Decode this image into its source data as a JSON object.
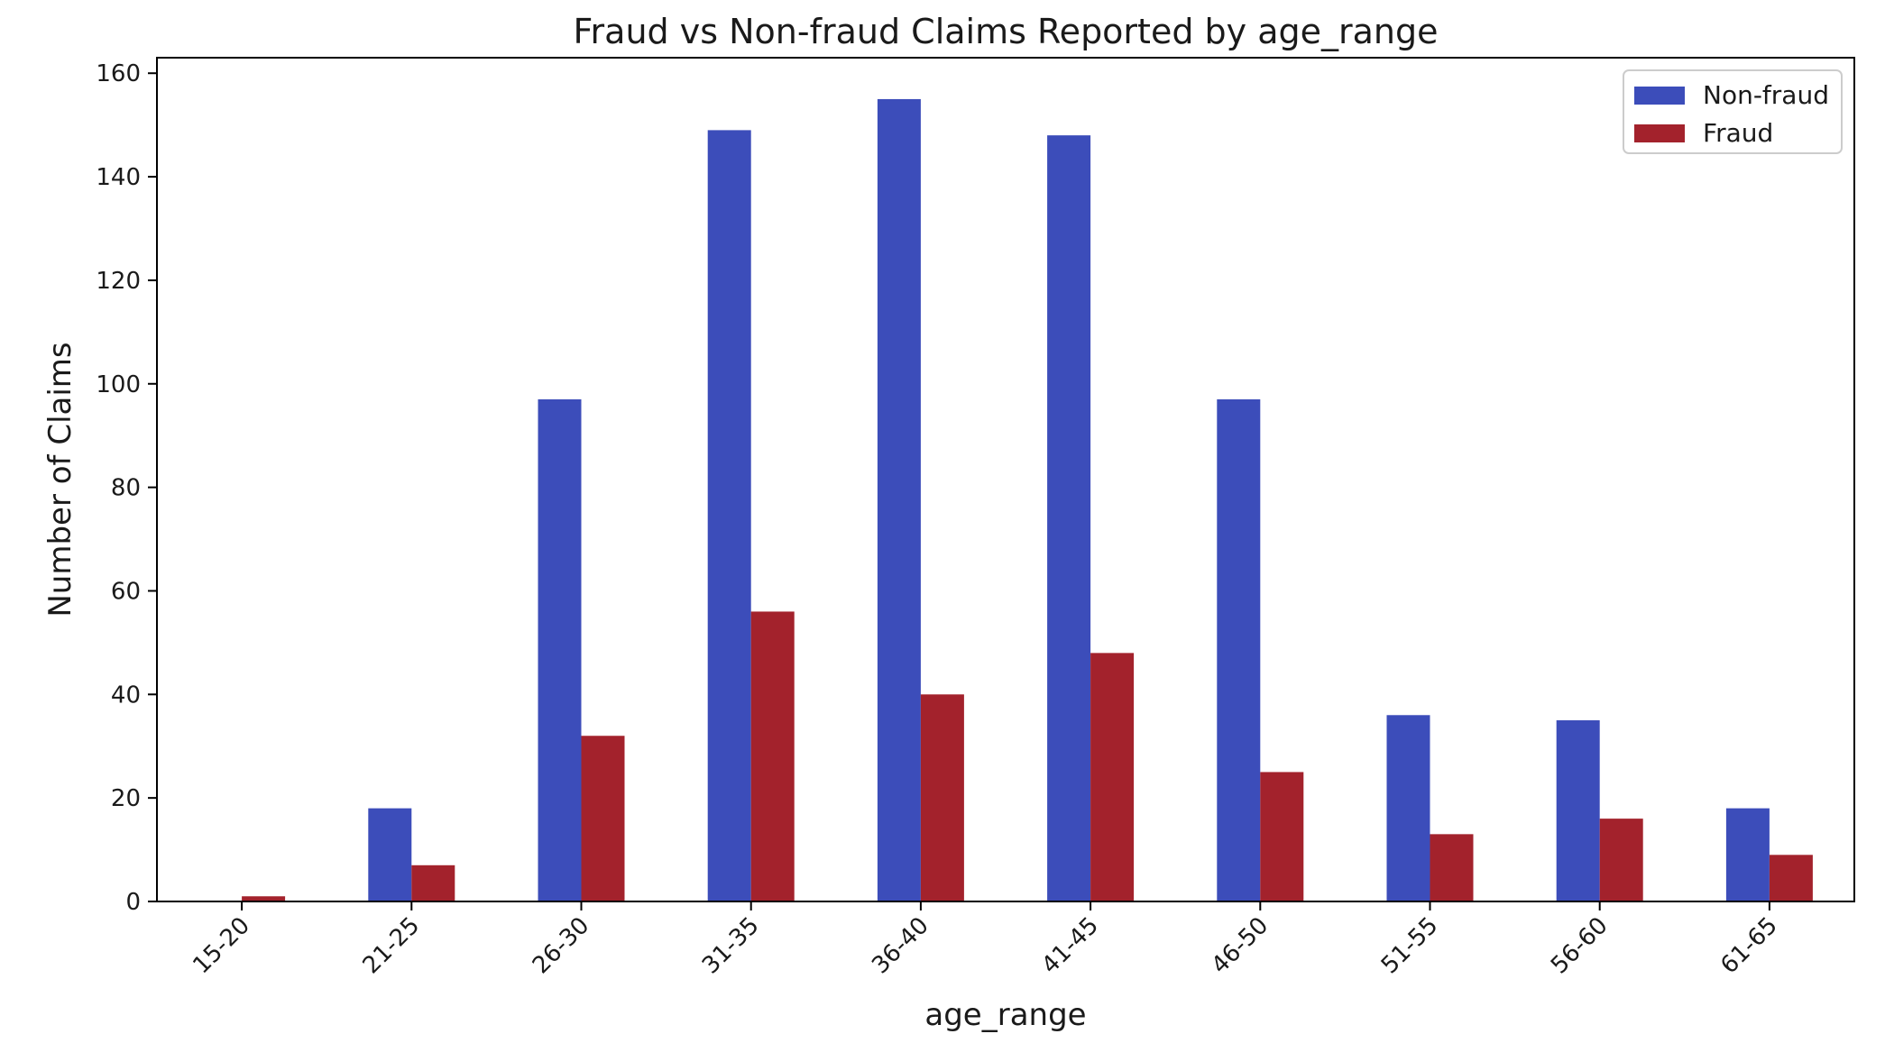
{
  "chart_data": {
    "type": "bar",
    "title": "Fraud vs Non-fraud Claims Reported by age_range",
    "xlabel": "age_range",
    "ylabel": "Number of Claims",
    "categories": [
      "15-20",
      "21-25",
      "26-30",
      "31-35",
      "36-40",
      "41-45",
      "46-50",
      "51-55",
      "56-60",
      "61-65"
    ],
    "series": [
      {
        "name": "Non-fraud",
        "color": "#3c4dba",
        "values": [
          0,
          18,
          97,
          149,
          155,
          148,
          97,
          36,
          35,
          18
        ]
      },
      {
        "name": "Fraud",
        "color": "#a3222c",
        "values": [
          1,
          7,
          32,
          56,
          40,
          48,
          25,
          13,
          16,
          9
        ]
      }
    ],
    "ylim": [
      0,
      163
    ],
    "yticks": [
      0,
      20,
      40,
      60,
      80,
      100,
      120,
      140,
      160
    ],
    "grid": false,
    "legend_position": "top-right",
    "x_tick_rotation": -45
  }
}
